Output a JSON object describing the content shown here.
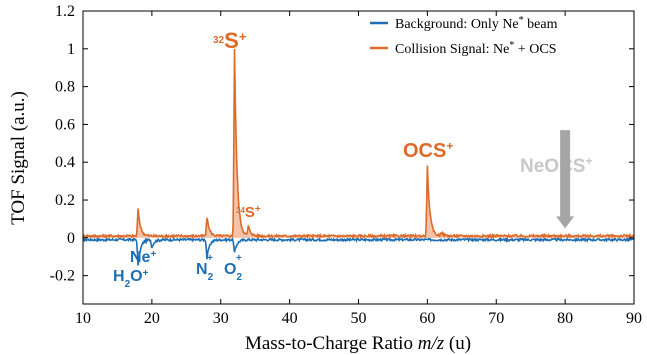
{
  "chart_data": {
    "type": "line",
    "xlabel_pre": "Mass-to-Charge Ratio ",
    "xlabel_italic": "m/z",
    "xlabel_post": " (u)",
    "ylabel": "TOF Signal (a.u.)",
    "xlim": [
      10,
      90
    ],
    "ylim": [
      -0.35,
      1.2
    ],
    "xticks": [
      "10",
      "20",
      "30",
      "40",
      "50",
      "60",
      "70",
      "80",
      "90"
    ],
    "yticks": [
      "-0.2",
      "0",
      "0.2",
      "0.4",
      "0.6",
      "0.8",
      "1",
      "1.2"
    ],
    "legend_position": "top-right",
    "series": [
      {
        "name": "Background: Only Ne",
        "name_sup": "*",
        "name_post": " beam",
        "color": "#1f6fb4",
        "baseline": -0.01,
        "peaks": [
          {
            "x": 18.0,
            "y": -0.15
          },
          {
            "x": 20.0,
            "y": -0.05
          },
          {
            "x": 28.0,
            "y": -0.11
          },
          {
            "x": 32.0,
            "y": -0.08
          }
        ]
      },
      {
        "name": "Collision Signal: Ne",
        "name_sup": "*",
        "name_post": " + OCS",
        "color": "#de6a2a",
        "fill": "#f2b89a",
        "baseline": 0.01,
        "peaks": [
          {
            "x": 18.0,
            "y": 0.15
          },
          {
            "x": 28.0,
            "y": 0.11
          },
          {
            "x": 32.0,
            "y": 1.0
          },
          {
            "x": 34.0,
            "y": 0.06
          },
          {
            "x": 60.0,
            "y": 0.38
          },
          {
            "x": 62.0,
            "y": 0.03
          }
        ]
      }
    ],
    "annotations": {
      "s32": {
        "sup": "32",
        "base": "S",
        "charge": "+",
        "color": "#de6a2a"
      },
      "s34": {
        "sup": "34",
        "base": "S",
        "charge": "+",
        "color": "#de6a2a"
      },
      "ocs": {
        "base": "OCS",
        "charge": "+",
        "color": "#de6a2a"
      },
      "neocs": {
        "base": "NeOCS",
        "charge": "+",
        "color": "#c8c8c8"
      },
      "h2o": {
        "base": "H",
        "sub": "2",
        "post": "O",
        "charge": "+",
        "color": "#1f6fb4"
      },
      "ne": {
        "base": "Ne",
        "charge": "+",
        "color": "#1f6fb4"
      },
      "n2": {
        "base": "N",
        "sub": "2",
        "charge": "+",
        "color": "#1f6fb4"
      },
      "o2": {
        "base": "O",
        "sub": "2",
        "charge": "+",
        "color": "#1f6fb4"
      }
    },
    "arrow": {
      "x": 80,
      "y_top": 0.57,
      "y_bottom": 0.05,
      "color": "#a6a6a6"
    }
  }
}
